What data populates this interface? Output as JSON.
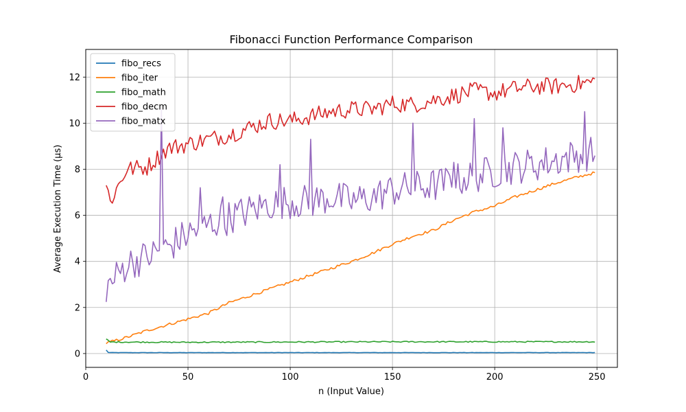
{
  "chart_data": {
    "type": "line",
    "title": "Fibonacci Function Performance Comparison",
    "xlabel": "n (Input Value)",
    "ylabel": "Average Execution Time (µs)",
    "xlim": [
      0,
      260
    ],
    "ylim": [
      -0.6,
      13.2
    ],
    "xticks": [
      0,
      50,
      100,
      150,
      200,
      250
    ],
    "yticks": [
      0,
      2,
      4,
      6,
      8,
      10,
      12
    ],
    "grid": true,
    "legend": "top-left",
    "x": {
      "start": 10,
      "end": 249,
      "step": 1
    },
    "series": [
      {
        "name": "fibo_recs",
        "color": "#1f77b4",
        "anchors": [
          [
            10,
            0.15
          ],
          [
            11,
            0.05
          ],
          [
            12,
            0.04
          ],
          [
            50,
            0.04
          ],
          [
            100,
            0.04
          ],
          [
            150,
            0.04
          ],
          [
            200,
            0.04
          ],
          [
            249,
            0.04
          ]
        ],
        "noise": 0.006
      },
      {
        "name": "fibo_iter",
        "color": "#ff7f0e",
        "anchors": [
          [
            10,
            0.45
          ],
          [
            20,
            0.7
          ],
          [
            30,
            1.0
          ],
          [
            40,
            1.25
          ],
          [
            50,
            1.5
          ],
          [
            60,
            1.75
          ],
          [
            70,
            2.2
          ],
          [
            80,
            2.5
          ],
          [
            90,
            2.8
          ],
          [
            100,
            3.1
          ],
          [
            110,
            3.4
          ],
          [
            120,
            3.7
          ],
          [
            130,
            4.0
          ],
          [
            140,
            4.35
          ],
          [
            150,
            4.75
          ],
          [
            160,
            5.1
          ],
          [
            170,
            5.35
          ],
          [
            180,
            5.8
          ],
          [
            190,
            6.15
          ],
          [
            200,
            6.4
          ],
          [
            210,
            6.8
          ],
          [
            220,
            7.1
          ],
          [
            230,
            7.4
          ],
          [
            240,
            7.65
          ],
          [
            249,
            7.85
          ]
        ],
        "noise": 0.06
      },
      {
        "name": "fibo_math",
        "color": "#2ca02c",
        "anchors": [
          [
            10,
            0.62
          ],
          [
            12,
            0.5
          ],
          [
            50,
            0.49
          ],
          [
            100,
            0.5
          ],
          [
            150,
            0.51
          ],
          [
            200,
            0.51
          ],
          [
            249,
            0.51
          ]
        ],
        "noise": 0.025
      },
      {
        "name": "fibo_decm",
        "color": "#d62728",
        "anchors": [
          [
            10,
            7.3
          ],
          [
            12,
            6.6
          ],
          [
            20,
            8.0
          ],
          [
            30,
            8.1
          ],
          [
            40,
            8.9
          ],
          [
            50,
            9.1
          ],
          [
            60,
            9.3
          ],
          [
            70,
            9.5
          ],
          [
            80,
            9.8
          ],
          [
            90,
            10.1
          ],
          [
            100,
            10.1
          ],
          [
            110,
            10.3
          ],
          [
            120,
            10.5
          ],
          [
            130,
            10.6
          ],
          [
            140,
            10.6
          ],
          [
            150,
            10.85
          ],
          [
            160,
            10.8
          ],
          [
            170,
            11.0
          ],
          [
            180,
            11.2
          ],
          [
            190,
            11.4
          ],
          [
            200,
            11.3
          ],
          [
            210,
            11.5
          ],
          [
            220,
            11.6
          ],
          [
            230,
            11.6
          ],
          [
            240,
            11.7
          ],
          [
            249,
            11.8
          ]
        ],
        "noise": 0.38
      },
      {
        "name": "fibo_matx",
        "color": "#9467bd",
        "anchors": [
          [
            10,
            2.9
          ],
          [
            12,
            3.0
          ],
          [
            20,
            3.9
          ],
          [
            30,
            4.2
          ],
          [
            40,
            4.6
          ],
          [
            50,
            5.2
          ],
          [
            60,
            5.6
          ],
          [
            70,
            5.9
          ],
          [
            80,
            6.2
          ],
          [
            90,
            6.5
          ],
          [
            100,
            6.6
          ],
          [
            110,
            6.6
          ],
          [
            120,
            6.8
          ],
          [
            130,
            6.6
          ],
          [
            140,
            6.8
          ],
          [
            150,
            7.1
          ],
          [
            160,
            7.2
          ],
          [
            170,
            7.3
          ],
          [
            180,
            7.5
          ],
          [
            190,
            7.7
          ],
          [
            200,
            7.9
          ],
          [
            210,
            8.1
          ],
          [
            220,
            8.2
          ],
          [
            230,
            8.4
          ],
          [
            240,
            8.6
          ],
          [
            249,
            8.7
          ]
        ],
        "noise": 0.75,
        "spikes": [
          [
            37,
            10.7
          ],
          [
            56,
            7.2
          ],
          [
            67,
            6.8
          ],
          [
            95,
            8.2
          ],
          [
            110,
            9.3
          ],
          [
            160,
            10.0
          ],
          [
            180,
            8.3
          ],
          [
            190,
            10.2
          ],
          [
            204,
            9.8
          ],
          [
            244,
            10.5
          ]
        ]
      }
    ]
  }
}
